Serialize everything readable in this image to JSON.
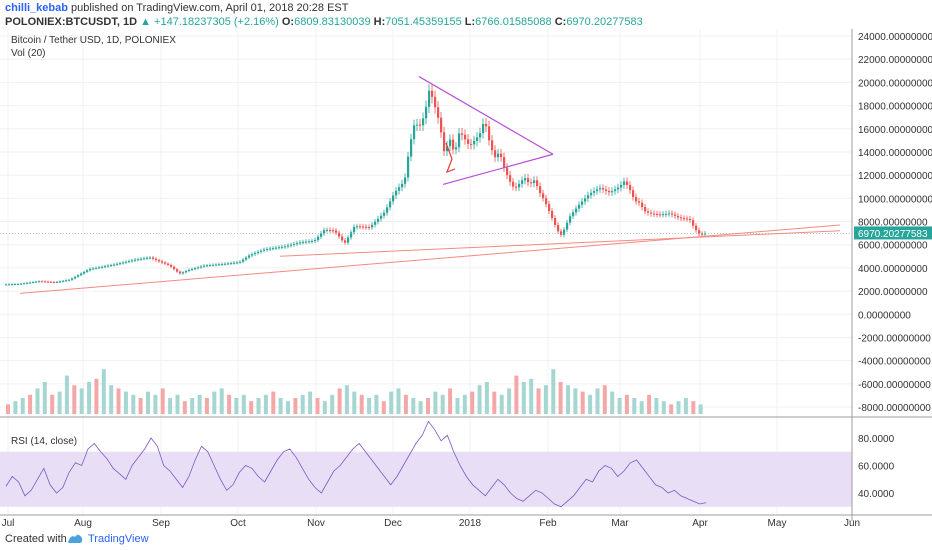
{
  "header": {
    "author": "chilli_kebab",
    "published": "published on TradingView.com, April 01, 2018 20:28 EST",
    "symbol": "POLONIEX:BTCUSDT, 1D",
    "change": "+147.18237305 (+2.16%)",
    "open_label": "O:",
    "open": "6809.83130039",
    "high_label": "H:",
    "high": "7051.45359155",
    "low_label": "L:",
    "low": "6766.01585088",
    "close_label": "C:",
    "close": "6970.20277583"
  },
  "legend": {
    "title": "Bitcoin / Tether USD, 1D, POLONIEX",
    "vol": "Vol (20)",
    "rsi": "RSI (14, close)"
  },
  "footer": {
    "created_with": "Created with",
    "brand": "TradingView"
  },
  "colors": {
    "up": "#26a69a",
    "down": "#ef5350",
    "rsi_band": "#e8dff7",
    "triangle": "#b84fd6",
    "trendline": "#f28b82",
    "pattern": "#e53935"
  },
  "chart_data": [
    {
      "type": "candlestick",
      "title": "Bitcoin / Tether USD, 1D, POLONIEX",
      "x_ticks": [
        "Jul",
        "Aug",
        "Sep",
        "Oct",
        "Nov",
        "Dec",
        "2018",
        "Feb",
        "Mar",
        "Apr",
        "May",
        "Jun"
      ],
      "y_ticks": [
        "24000.00000000",
        "22000.00000000",
        "20000.00000000",
        "18000.00000000",
        "16000.00000000",
        "14000.00000000",
        "12000.00000000",
        "10000.00000000",
        "8000.00000000",
        "6000.00000000",
        "4000.00000000",
        "2000.00000000",
        "0.00000000",
        "-2000.00000000",
        "-4000.00000000",
        "-6000.00000000",
        "-8000.00000000"
      ],
      "last_price_label": "6970.20277583",
      "last_price": 6970.2,
      "close_path": [
        [
          0,
          2550
        ],
        [
          20,
          2620
        ],
        [
          40,
          2850
        ],
        [
          55,
          2750
        ],
        [
          70,
          2980
        ],
        [
          90,
          3900
        ],
        [
          115,
          4300
        ],
        [
          135,
          4700
        ],
        [
          150,
          4900
        ],
        [
          160,
          4550
        ],
        [
          170,
          4200
        ],
        [
          180,
          3500
        ],
        [
          190,
          3850
        ],
        [
          205,
          4200
        ],
        [
          225,
          4350
        ],
        [
          240,
          4500
        ],
        [
          250,
          5100
        ],
        [
          265,
          5600
        ],
        [
          285,
          5850
        ],
        [
          300,
          6200
        ],
        [
          315,
          6350
        ],
        [
          325,
          7300
        ],
        [
          335,
          7200
        ],
        [
          345,
          6100
        ],
        [
          355,
          7600
        ],
        [
          370,
          7500
        ],
        [
          385,
          8800
        ],
        [
          395,
          10500
        ],
        [
          405,
          11500
        ],
        [
          410,
          14500
        ],
        [
          415,
          16500
        ],
        [
          420,
          16200
        ],
        [
          425,
          17200
        ],
        [
          430,
          19500
        ],
        [
          435,
          18000
        ],
        [
          440,
          16500
        ],
        [
          445,
          13800
        ],
        [
          450,
          15200
        ],
        [
          455,
          13800
        ],
        [
          460,
          15800
        ],
        [
          470,
          14500
        ],
        [
          480,
          15500
        ],
        [
          485,
          16800
        ],
        [
          490,
          14800
        ],
        [
          495,
          13500
        ],
        [
          500,
          14000
        ],
        [
          505,
          12500
        ],
        [
          510,
          11500
        ],
        [
          515,
          10800
        ],
        [
          520,
          11300
        ],
        [
          525,
          11800
        ],
        [
          530,
          11200
        ],
        [
          535,
          11600
        ],
        [
          540,
          10500
        ],
        [
          545,
          9800
        ],
        [
          550,
          8800
        ],
        [
          558,
          7200
        ],
        [
          562,
          6800
        ],
        [
          570,
          8400
        ],
        [
          580,
          9500
        ],
        [
          590,
          10400
        ],
        [
          600,
          10900
        ],
        [
          610,
          10500
        ],
        [
          620,
          11000
        ],
        [
          625,
          11500
        ],
        [
          630,
          10800
        ],
        [
          635,
          9800
        ],
        [
          640,
          9600
        ],
        [
          645,
          8900
        ],
        [
          650,
          8700
        ],
        [
          660,
          8600
        ],
        [
          670,
          8700
        ],
        [
          680,
          8300
        ],
        [
          690,
          8200
        ],
        [
          695,
          7400
        ],
        [
          700,
          6900
        ],
        [
          705,
          6970
        ]
      ],
      "annotations": {
        "triangle_upper": [
          [
            419,
            20500
          ],
          [
            553,
            13800
          ]
        ],
        "triangle_lower": [
          [
            443,
            11200
          ],
          [
            553,
            13800
          ]
        ],
        "trendline_1": [
          [
            20,
            1800
          ],
          [
            840,
            7700
          ]
        ],
        "trendline_2": [
          [
            280,
            5000
          ],
          [
            840,
            7200
          ]
        ]
      }
    },
    {
      "type": "bar",
      "title": "Vol (20)",
      "note": "volume histogram overlaid in lower price pane",
      "values": [
        3,
        4,
        5,
        6,
        8,
        10,
        6,
        7,
        12,
        9,
        8,
        10,
        11,
        14,
        9,
        8,
        7,
        6,
        5,
        7,
        6,
        8,
        5,
        6,
        4,
        5,
        6,
        5,
        7,
        8,
        6,
        5,
        6,
        4,
        5,
        6,
        7,
        5,
        4,
        5,
        6,
        7,
        5,
        4,
        6,
        8,
        9,
        7,
        6,
        5,
        6,
        4,
        7,
        8,
        6,
        5,
        4,
        5,
        7,
        6,
        8,
        5,
        6,
        7,
        9,
        10,
        7,
        6,
        8,
        12,
        10,
        11,
        8,
        9,
        14,
        10,
        9,
        8,
        7,
        6,
        8,
        9,
        7,
        5,
        6,
        5,
        4,
        6,
        5,
        4,
        3,
        4,
        5,
        4,
        3
      ]
    },
    {
      "type": "line",
      "title": "RSI (14, close)",
      "y_ticks": [
        "80.0000",
        "60.0000",
        "40.0000"
      ],
      "band": [
        30,
        70
      ],
      "values": [
        45,
        52,
        48,
        38,
        42,
        50,
        58,
        46,
        40,
        44,
        55,
        62,
        60,
        72,
        76,
        70,
        65,
        58,
        54,
        50,
        60,
        66,
        72,
        80,
        74,
        60,
        56,
        50,
        44,
        52,
        64,
        74,
        70,
        60,
        50,
        42,
        46,
        55,
        60,
        58,
        52,
        48,
        56,
        64,
        70,
        72,
        66,
        58,
        50,
        44,
        40,
        48,
        56,
        60,
        66,
        72,
        76,
        70,
        64,
        58,
        52,
        46,
        52,
        60,
        68,
        76,
        82,
        92,
        86,
        78,
        82,
        70,
        60,
        52,
        46,
        42,
        38,
        44,
        50,
        46,
        40,
        36,
        34,
        38,
        42,
        40,
        36,
        32,
        30,
        34,
        38,
        44,
        50,
        48,
        56,
        60,
        58,
        52,
        56,
        62,
        64,
        58,
        52,
        46,
        44,
        40,
        42,
        38,
        36,
        34,
        32,
        33
      ]
    }
  ]
}
